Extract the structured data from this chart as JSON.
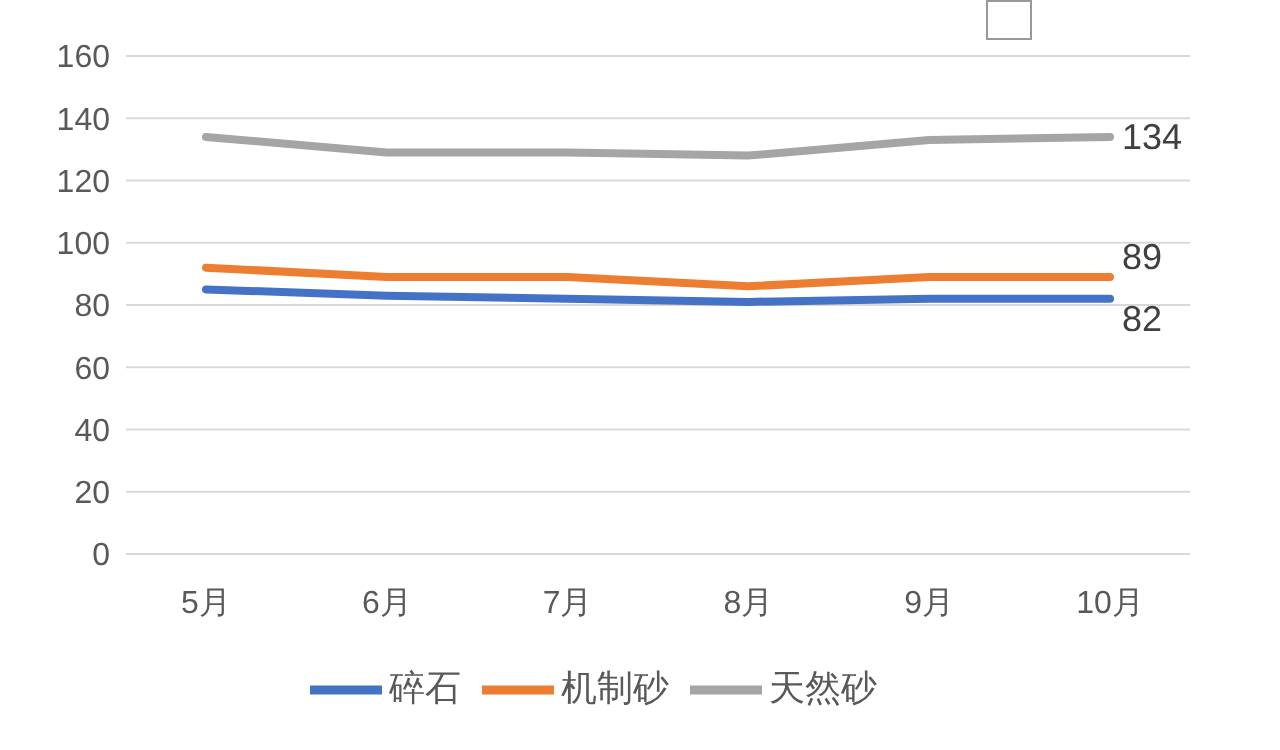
{
  "chart_data": {
    "type": "line",
    "categories": [
      "5月",
      "6月",
      "7月",
      "8月",
      "9月",
      "10月"
    ],
    "series": [
      {
        "name": "碎石",
        "color": "#4472c4",
        "values": [
          85,
          83,
          82,
          81,
          82,
          82
        ],
        "value_labels": [
          null,
          null,
          null,
          null,
          null,
          "82"
        ]
      },
      {
        "name": "机制砂",
        "color": "#ed7d31",
        "values": [
          92,
          89,
          89,
          86,
          89,
          89
        ],
        "value_labels": [
          null,
          null,
          null,
          null,
          null,
          "89"
        ]
      },
      {
        "name": "天然砂",
        "color": "#a5a5a5",
        "values": [
          134,
          129,
          129,
          128,
          133,
          134
        ],
        "value_labels": [
          null,
          null,
          null,
          null,
          null,
          "134"
        ]
      }
    ],
    "ylim": [
      0,
      160
    ],
    "yticks": [
      0,
      20,
      40,
      60,
      80,
      100,
      120,
      140,
      160
    ],
    "grid": "y",
    "legend": "bottom",
    "marker": "none",
    "line_style": "solid"
  }
}
